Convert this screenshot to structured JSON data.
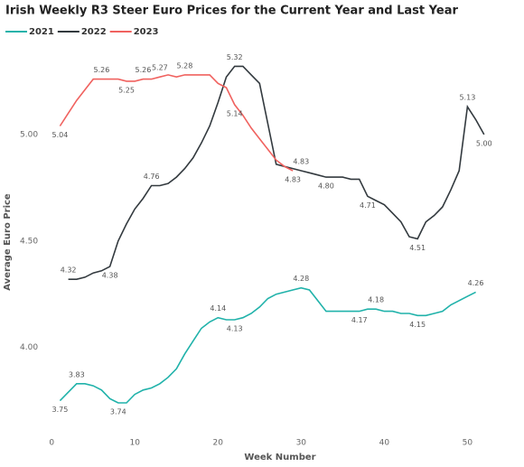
{
  "chart_data": {
    "type": "line",
    "title": "Irish Weekly R3 Steer Euro Prices for the Current Year and Last Year",
    "x_label": "Week Number",
    "y_label": "Average Euro Price",
    "xlim": [
      -1,
      53
    ],
    "ylim": [
      3.6,
      5.5
    ],
    "xticks": [
      0,
      10,
      20,
      30,
      40,
      50
    ],
    "yticks": [
      {
        "value": 4.0,
        "label": "4.00"
      },
      {
        "value": 4.5,
        "label": "4.50"
      },
      {
        "value": 5.0,
        "label": "5.00"
      }
    ],
    "series": [
      {
        "name": "2021",
        "color": "#20b2aa",
        "x": [
          1,
          2,
          3,
          4,
          5,
          6,
          7,
          8,
          9,
          10,
          11,
          12,
          13,
          14,
          15,
          16,
          17,
          18,
          19,
          20,
          21,
          22,
          23,
          24,
          25,
          26,
          27,
          28,
          29,
          30,
          31,
          32,
          33,
          34,
          35,
          36,
          37,
          38,
          39,
          40,
          41,
          42,
          43,
          44,
          45,
          46,
          47,
          48,
          49,
          50,
          51
        ],
        "values": [
          3.75,
          3.79,
          3.83,
          3.83,
          3.82,
          3.8,
          3.76,
          3.74,
          3.74,
          3.78,
          3.8,
          3.81,
          3.83,
          3.86,
          3.9,
          3.97,
          4.03,
          4.09,
          4.12,
          4.14,
          4.13,
          4.13,
          4.14,
          4.16,
          4.19,
          4.23,
          4.25,
          4.26,
          4.27,
          4.28,
          4.27,
          4.22,
          4.17,
          4.17,
          4.17,
          4.17,
          4.17,
          4.18,
          4.18,
          4.17,
          4.17,
          4.16,
          4.16,
          4.15,
          4.15,
          4.16,
          4.17,
          4.2,
          4.22,
          4.24,
          4.26
        ],
        "value_labels": [
          "3.75",
          null,
          "3.83",
          null,
          null,
          null,
          null,
          "3.74",
          null,
          null,
          null,
          null,
          null,
          null,
          null,
          null,
          null,
          null,
          null,
          "4.14",
          null,
          "4.13",
          null,
          null,
          null,
          null,
          null,
          null,
          null,
          "4.28",
          null,
          null,
          null,
          null,
          null,
          null,
          "4.17",
          null,
          "4.18",
          null,
          null,
          null,
          null,
          "4.15",
          null,
          null,
          null,
          null,
          null,
          null,
          "4.26"
        ]
      },
      {
        "name": "2022",
        "color": "#333a3f",
        "x": [
          2,
          3,
          4,
          5,
          6,
          7,
          8,
          9,
          10,
          11,
          12,
          13,
          14,
          15,
          16,
          17,
          18,
          19,
          20,
          21,
          22,
          23,
          24,
          25,
          26,
          27,
          28,
          29,
          30,
          31,
          32,
          33,
          34,
          35,
          36,
          37,
          38,
          39,
          40,
          41,
          42,
          43,
          44,
          45,
          46,
          47,
          48,
          49,
          50,
          51,
          52
        ],
        "values": [
          4.32,
          4.32,
          4.33,
          4.35,
          4.36,
          4.38,
          4.5,
          4.58,
          4.65,
          4.7,
          4.76,
          4.76,
          4.77,
          4.8,
          4.84,
          4.89,
          4.96,
          5.04,
          5.15,
          5.27,
          5.32,
          5.32,
          5.28,
          5.24,
          5.05,
          4.86,
          4.85,
          4.84,
          4.83,
          4.82,
          4.81,
          4.8,
          4.8,
          4.8,
          4.79,
          4.79,
          4.71,
          4.69,
          4.67,
          4.63,
          4.59,
          4.52,
          4.51,
          4.59,
          4.62,
          4.66,
          4.74,
          4.83,
          5.13,
          5.07,
          5.0
        ],
        "value_labels": [
          "4.32",
          null,
          null,
          null,
          null,
          "4.38",
          null,
          null,
          null,
          null,
          "4.76",
          null,
          null,
          null,
          null,
          null,
          null,
          null,
          null,
          null,
          "5.32",
          null,
          null,
          null,
          null,
          null,
          null,
          null,
          "4.83",
          null,
          null,
          "4.80",
          null,
          null,
          null,
          null,
          "4.71",
          null,
          null,
          null,
          null,
          null,
          "4.51",
          null,
          null,
          null,
          null,
          null,
          "5.13",
          null,
          "5.00"
        ]
      },
      {
        "name": "2023",
        "color": "#f0625f",
        "x": [
          1,
          2,
          3,
          4,
          5,
          6,
          7,
          8,
          9,
          10,
          11,
          12,
          13,
          14,
          15,
          16,
          17,
          18,
          19,
          20,
          21,
          22,
          23,
          24,
          25,
          26,
          27,
          28,
          29
        ],
        "values": [
          5.04,
          5.1,
          5.16,
          5.21,
          5.26,
          5.26,
          5.26,
          5.26,
          5.25,
          5.25,
          5.26,
          5.26,
          5.27,
          5.28,
          5.27,
          5.28,
          5.28,
          5.28,
          5.28,
          5.24,
          5.22,
          5.14,
          5.09,
          5.03,
          4.98,
          4.93,
          4.88,
          4.85,
          4.83
        ],
        "value_labels": [
          "5.04",
          null,
          null,
          null,
          null,
          "5.26",
          null,
          null,
          "5.25",
          null,
          "5.26",
          null,
          "5.27",
          null,
          null,
          "5.28",
          null,
          null,
          null,
          null,
          null,
          "5.14",
          null,
          null,
          null,
          null,
          null,
          null,
          "4.83"
        ]
      }
    ]
  }
}
